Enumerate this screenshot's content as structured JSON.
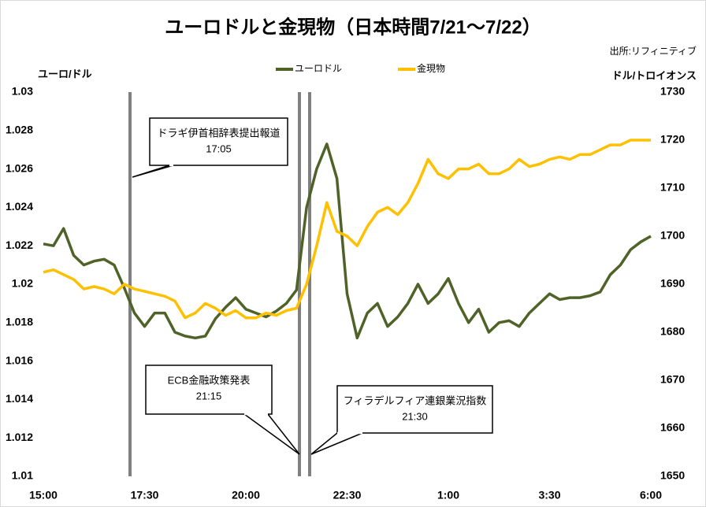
{
  "chart_data": {
    "type": "line",
    "title": "ユーロドルと金現物（日本時間7/21～7/22）",
    "source": "出所:リフィニティブ",
    "y_label": "ユーロ/ドル",
    "y2_label": "ドル/トロイオンス",
    "categories": [
      "15:00",
      null,
      null,
      null,
      null,
      null,
      null,
      null,
      null,
      null,
      "17:30",
      null,
      null,
      null,
      null,
      null,
      null,
      null,
      null,
      null,
      "20:00",
      null,
      null,
      null,
      null,
      null,
      null,
      null,
      null,
      null,
      "22:30",
      null,
      null,
      null,
      null,
      null,
      null,
      null,
      null,
      null,
      "1:00",
      null,
      null,
      null,
      null,
      null,
      null,
      null,
      null,
      null,
      "3:30",
      null,
      null,
      null,
      null,
      null,
      null,
      null,
      null,
      null,
      "6:00"
    ],
    "series": [
      {
        "name": "ユーロドル",
        "color": "#4f6228",
        "axis": "y",
        "values": [
          1.0221,
          1.022,
          1.0229,
          1.0215,
          1.021,
          1.0212,
          1.0213,
          1.021,
          1.0198,
          1.0185,
          1.0178,
          1.0185,
          1.0185,
          1.0175,
          1.0173,
          1.0172,
          1.0173,
          1.0182,
          1.0188,
          1.0193,
          1.0187,
          1.0185,
          1.0183,
          1.0186,
          1.019,
          1.0197,
          1.024,
          1.026,
          1.0273,
          1.0255,
          1.0195,
          1.0172,
          1.0185,
          1.019,
          1.0178,
          1.0183,
          1.019,
          1.02,
          1.019,
          1.0195,
          1.0203,
          1.019,
          1.018,
          1.0187,
          1.0175,
          1.018,
          1.0181,
          1.0178,
          1.0185,
          1.019,
          1.0195,
          1.0192,
          1.0193,
          1.0193,
          1.0194,
          1.0196,
          1.0205,
          1.021,
          1.0218,
          1.0222,
          1.0225
        ]
      },
      {
        "name": "金現物",
        "color": "#ffc000",
        "axis": "y2",
        "values": [
          1692.5,
          1693,
          1692,
          1691,
          1689,
          1689.5,
          1689,
          1688,
          1690,
          1689,
          1688.5,
          1688,
          1687.5,
          1686.5,
          1683,
          1684,
          1686,
          1685,
          1683.5,
          1684.5,
          1683,
          1683,
          1684,
          1683.5,
          1684.5,
          1685,
          1690,
          1698,
          1707,
          1701,
          1700,
          1698,
          1702,
          1705,
          1706,
          1704.5,
          1707,
          1711,
          1716,
          1713,
          1712,
          1714,
          1714,
          1715,
          1713,
          1713,
          1714,
          1716,
          1714.5,
          1715,
          1716,
          1716.5,
          1716,
          1717,
          1717,
          1718,
          1719,
          1719,
          1720,
          1720,
          1720
        ]
      }
    ],
    "ylim": [
      1.01,
      1.03
    ],
    "yticks": [
      1.01,
      1.012,
      1.014,
      1.016,
      1.018,
      1.02,
      1.022,
      1.024,
      1.026,
      1.028,
      1.03
    ],
    "y2lim": [
      1650,
      1730
    ],
    "y2ticks": [
      1650,
      1660,
      1670,
      1680,
      1690,
      1700,
      1710,
      1720,
      1730
    ],
    "grid": false,
    "legend": "top",
    "annotations": [
      {
        "lines": [
          "ドラギ伊首相辞表提出報道",
          "17:05"
        ]
      },
      {
        "lines": [
          "ECB金融政策発表",
          "21:15"
        ]
      },
      {
        "lines": [
          "フィラデルフィア連銀業況指数",
          "21:30"
        ]
      }
    ]
  }
}
